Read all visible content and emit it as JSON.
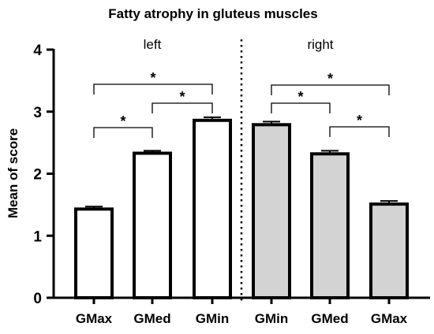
{
  "chart_data": {
    "type": "bar",
    "title": "Fatty atrophy in gluteus muscles",
    "xlabel": "",
    "ylabel": "Mean of score",
    "ylim": [
      0,
      4
    ],
    "yticks": [
      "0",
      "1",
      "2",
      "3",
      "4"
    ],
    "grid": false,
    "groups": [
      {
        "label": "left",
        "fill": "#ffffff",
        "bars": [
          {
            "category": "GMax",
            "value": 1.43,
            "error": 0.04
          },
          {
            "category": "GMed",
            "value": 2.33,
            "error": 0.04
          },
          {
            "category": "GMin",
            "value": 2.86,
            "error": 0.05
          }
        ]
      },
      {
        "label": "right",
        "fill": "#d3d3d3",
        "bars": [
          {
            "category": "GMin",
            "value": 2.79,
            "error": 0.05
          },
          {
            "category": "GMed",
            "value": 2.32,
            "error": 0.05
          },
          {
            "category": "GMax",
            "value": 1.51,
            "error": 0.05
          }
        ]
      }
    ],
    "significance": [
      {
        "from": [
          0,
          0
        ],
        "to": [
          0,
          1
        ],
        "label": "*"
      },
      {
        "from": [
          0,
          1
        ],
        "to": [
          0,
          2
        ],
        "label": "*"
      },
      {
        "from": [
          0,
          0
        ],
        "to": [
          0,
          2
        ],
        "label": "*"
      },
      {
        "from": [
          1,
          0
        ],
        "to": [
          1,
          1
        ],
        "label": "*"
      },
      {
        "from": [
          1,
          1
        ],
        "to": [
          1,
          2
        ],
        "label": "*"
      },
      {
        "from": [
          1,
          0
        ],
        "to": [
          1,
          2
        ],
        "label": "*"
      }
    ]
  }
}
